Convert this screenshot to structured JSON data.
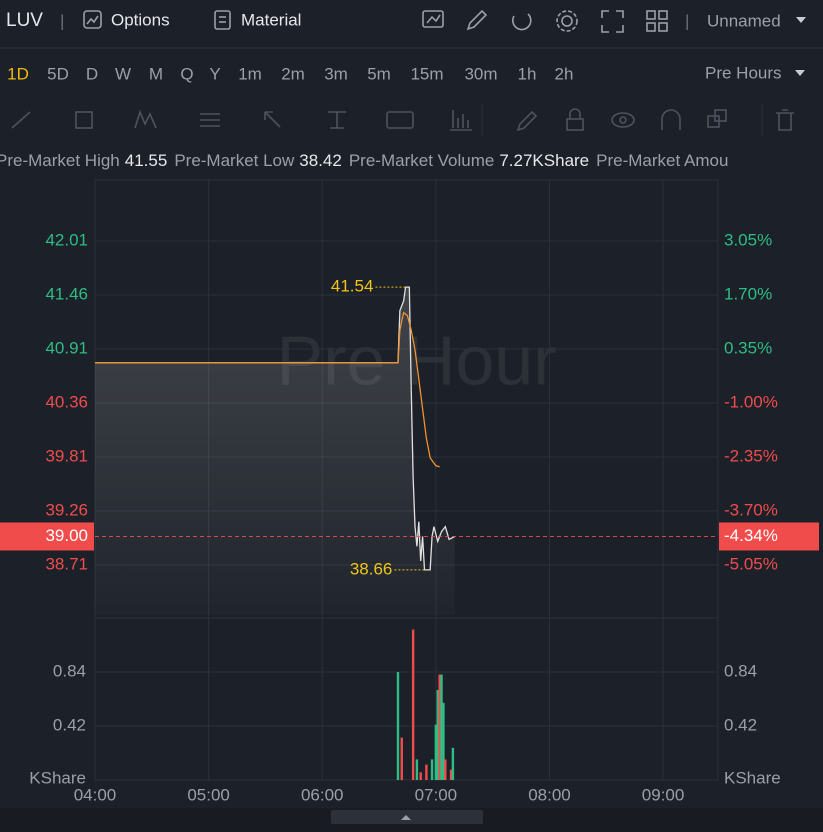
{
  "toolbar": {
    "symbol": "LUV",
    "separator": "|",
    "options": "Options",
    "material": "Material",
    "separator2": "|",
    "layout_name": "Unnamed"
  },
  "timeframes": {
    "items": [
      "1D",
      "5D",
      "D",
      "W",
      "M",
      "Q",
      "Y",
      "1m",
      "2m",
      "3m",
      "5m",
      "15m",
      "30m",
      "1h",
      "2h"
    ],
    "selected": 0,
    "session": "Pre Hours"
  },
  "info_bar": [
    {
      "label": "Pre-Market High",
      "value": "41.55"
    },
    {
      "label": "Pre-Market Low",
      "value": "38.42"
    },
    {
      "label": "Pre-Market Volume",
      "value": "7.27KShare"
    },
    {
      "label": "Pre-Market Amou"
    }
  ],
  "chart_data": {
    "type": "line",
    "watermark": "Pre Hour",
    "xlim": [
      240,
      569
    ],
    "xticks": [
      {
        "value": 240,
        "label": "04:00"
      },
      {
        "value": 300,
        "label": "05:00"
      },
      {
        "value": 360,
        "label": "06:00"
      },
      {
        "value": 420,
        "label": "07:00"
      },
      {
        "value": 480,
        "label": "08:00"
      },
      {
        "value": 540,
        "label": "09:00"
      }
    ],
    "ylim": [
      38.2,
      42.58
    ],
    "yticks": [
      42.01,
      41.46,
      40.91,
      40.36,
      39.81,
      39.26,
      38.71
    ],
    "ytick_colors": [
      "#2ebd85",
      "#2ebd85",
      "#2ebd85",
      "#f04c4c",
      "#f04c4c",
      "#f04c4c",
      "#f04c4c"
    ],
    "y2lim": [
      -6.3,
      4.45
    ],
    "y2ticks": [
      {
        "value": 3.05,
        "label": "3.05%"
      },
      {
        "value": 1.7,
        "label": "1.70%"
      },
      {
        "value": 0.35,
        "label": "0.35%"
      },
      {
        "value": -1.0,
        "label": "-1.00%"
      },
      {
        "value": -2.35,
        "label": "-2.35%"
      },
      {
        "value": -3.7,
        "label": "-3.70%"
      },
      {
        "value": -5.05,
        "label": "-5.05%"
      }
    ],
    "grid": true,
    "series": [
      {
        "color": "#e0e0e0",
        "area": true,
        "x": [
          240,
          400,
          401,
          403,
          404,
          406,
          407,
          408,
          409,
          410,
          411,
          412,
          413,
          414,
          417,
          418,
          419,
          421,
          423,
          425,
          427,
          430
        ],
        "values": [
          40.77,
          40.77,
          41.3,
          41.4,
          41.54,
          41.54,
          40.5,
          39.6,
          39.1,
          38.9,
          39.15,
          38.75,
          39.0,
          38.66,
          38.66,
          39.0,
          39.1,
          38.95,
          39.05,
          39.1,
          38.97,
          39.0
        ]
      },
      {
        "color": "#f0922e",
        "x": [
          240,
          400,
          401,
          402,
          403,
          405,
          407,
          409,
          411,
          413,
          415,
          417,
          420,
          422
        ],
        "values": [
          40.77,
          40.77,
          41.1,
          41.2,
          41.28,
          41.25,
          41.1,
          40.9,
          40.6,
          40.3,
          40.0,
          39.8,
          39.72,
          39.71
        ]
      }
    ],
    "annotations": [
      {
        "x": 405,
        "value": 41.54,
        "color": "#f0c419"
      },
      {
        "x": 415,
        "value": 38.66,
        "color": "#f0c419"
      }
    ],
    "last_price": {
      "value": 39.0,
      "label": "39.00",
      "change": -4.34,
      "change_label": "-4.34%",
      "color": "#f04c4c"
    }
  },
  "volume": {
    "type": "bar",
    "x": [
      400,
      402,
      408,
      410,
      412,
      415,
      418,
      420,
      421,
      422,
      423,
      424,
      425,
      428,
      429
    ],
    "values": [
      0.84,
      0.33,
      1.17,
      0.16,
      0.06,
      0.12,
      0.16,
      0.43,
      0.7,
      0.82,
      0.82,
      0.6,
      0.16,
      0.08,
      0.25
    ],
    "colors": [
      "#2ebd85",
      "#f04c4c",
      "#f04c4c",
      "#2ebd85",
      "#f04c4c",
      "#f04c4c",
      "#2ebd85",
      "#2ebd85",
      "#2ebd85",
      "#f04c4c",
      "#2ebd85",
      "#2ebd85",
      "#f04c4c",
      "#f04c4c",
      "#2ebd85"
    ],
    "ylim": [
      0,
      1.26
    ],
    "yticks": [
      0.84,
      0.42
    ],
    "unit_label": "KShare"
  }
}
